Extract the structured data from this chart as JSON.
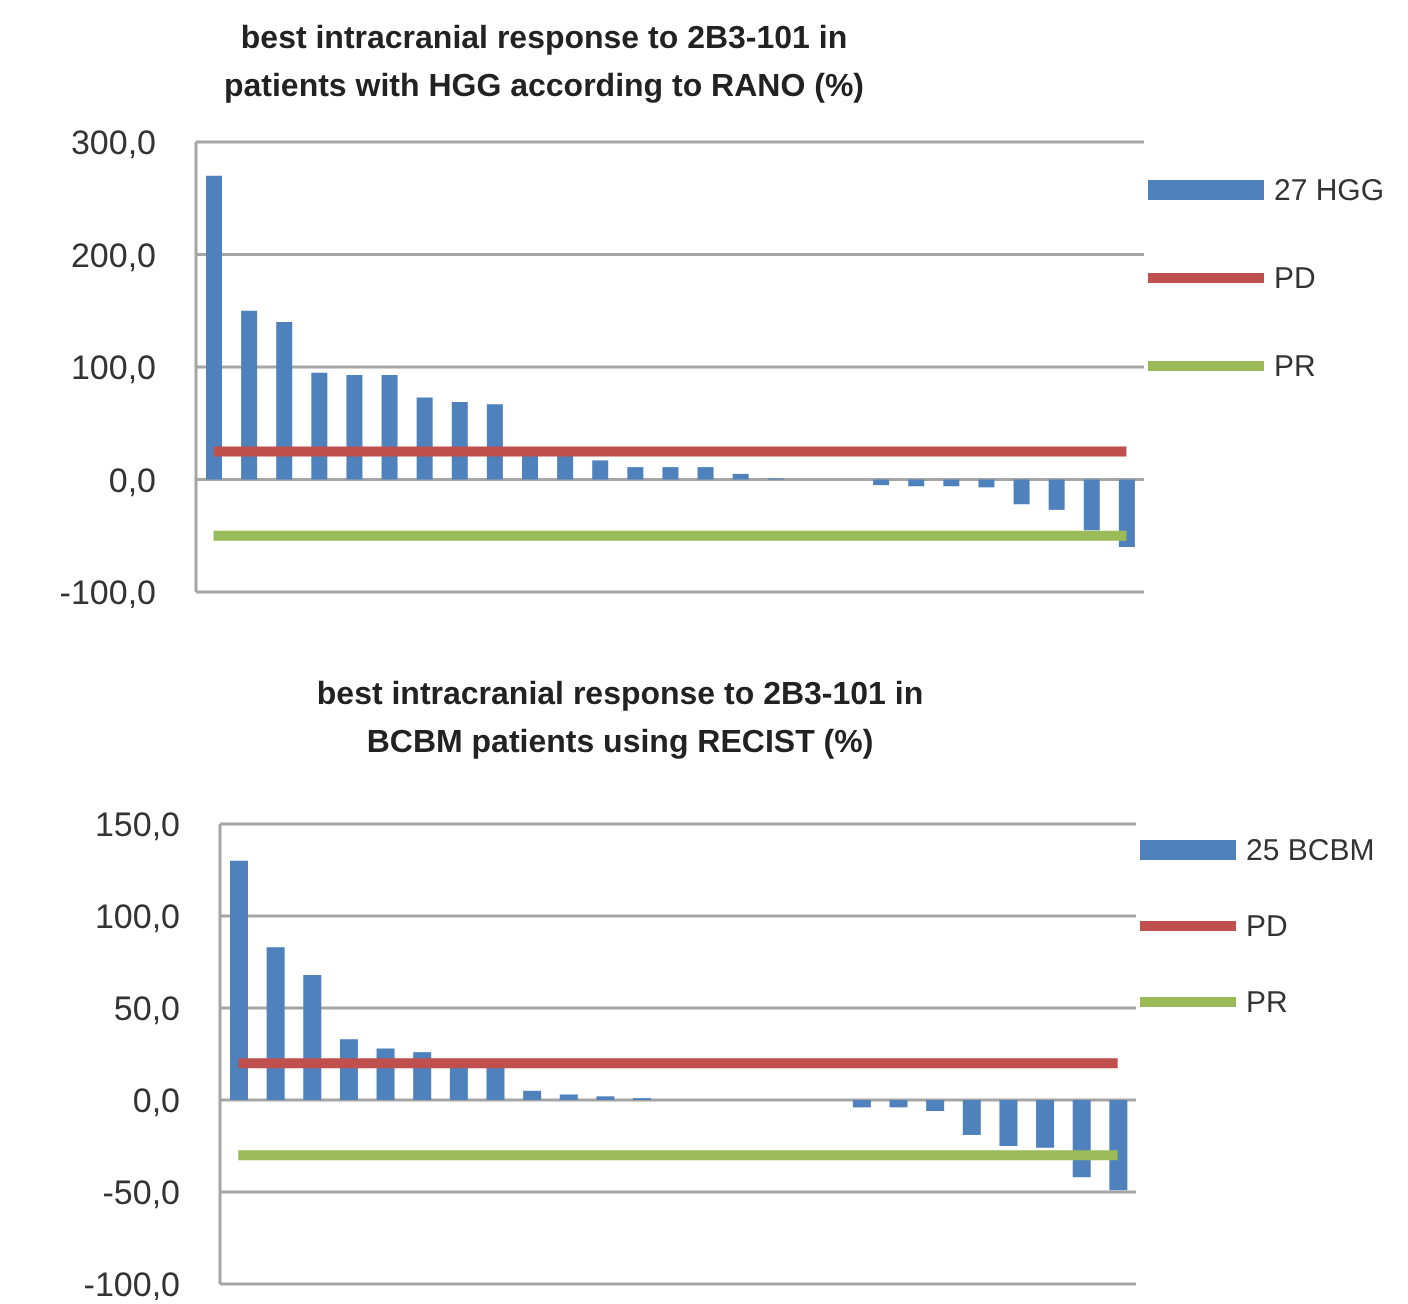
{
  "chart_data": [
    {
      "type": "bar",
      "title": "best intracranial response to 2B3-101 in\npatients with HGG according to RANO (%)",
      "categories": [
        null,
        null,
        null,
        null,
        null,
        null,
        null,
        null,
        null,
        null,
        null,
        null,
        null,
        null,
        null,
        null,
        null,
        null,
        null,
        null,
        null,
        null,
        null,
        null,
        null,
        null,
        null
      ],
      "series": [
        {
          "name": "27 HGG",
          "color": "#4f81bd",
          "values": [
            270,
            150,
            140,
            95,
            93,
            93,
            73,
            69,
            67,
            26,
            26,
            17,
            11,
            11,
            11,
            5,
            1,
            0,
            0,
            -5,
            -6,
            -6,
            -7,
            -22,
            -27,
            -45,
            -60
          ]
        },
        {
          "name": "PD",
          "type": "line",
          "color": "#c0504d",
          "values": [
            25,
            25,
            25,
            25,
            25,
            25,
            25,
            25,
            25,
            25,
            25,
            25,
            25,
            25,
            25,
            25,
            25,
            25,
            25,
            25,
            25,
            25,
            25,
            25,
            25,
            25,
            25
          ]
        },
        {
          "name": "PR",
          "type": "line",
          "color": "#9bbb59",
          "values": [
            -50,
            -50,
            -50,
            -50,
            -50,
            -50,
            -50,
            -50,
            -50,
            -50,
            -50,
            -50,
            -50,
            -50,
            -50,
            -50,
            -50,
            -50,
            -50,
            -50,
            -50,
            -50,
            -50,
            -50,
            -50,
            -50,
            -50
          ]
        }
      ],
      "ylim": [
        -100,
        300
      ],
      "yticks": [
        {
          "value": -100,
          "label": "-100,0"
        },
        {
          "value": 0,
          "label": "0,0"
        },
        {
          "value": 100,
          "label": "100,0"
        },
        {
          "value": 200,
          "label": "200,0"
        },
        {
          "value": 300,
          "label": "300,0"
        }
      ],
      "grid": "y",
      "legend": "right",
      "marker": "none"
    },
    {
      "type": "bar",
      "title": "best intracranial response to 2B3-101 in\nBCBM patients using RECIST (%)",
      "categories": [
        null,
        null,
        null,
        null,
        null,
        null,
        null,
        null,
        null,
        null,
        null,
        null,
        null,
        null,
        null,
        null,
        null,
        null,
        null,
        null,
        null,
        null,
        null,
        null,
        null
      ],
      "series": [
        {
          "name": "25 BCBM",
          "color": "#4f81bd",
          "values": [
            130,
            83,
            68,
            33,
            28,
            26,
            20,
            19,
            5,
            3,
            2,
            1,
            0,
            0,
            0,
            0,
            0,
            -4,
            -4,
            -6,
            -19,
            -25,
            -26,
            -42,
            -49
          ]
        },
        {
          "name": "PD",
          "type": "line",
          "color": "#c0504d",
          "values": [
            20,
            20,
            20,
            20,
            20,
            20,
            20,
            20,
            20,
            20,
            20,
            20,
            20,
            20,
            20,
            20,
            20,
            20,
            20,
            20,
            20,
            20,
            20,
            20,
            20
          ]
        },
        {
          "name": "PR",
          "type": "line",
          "color": "#9bbb59",
          "values": [
            -30,
            -30,
            -30,
            -30,
            -30,
            -30,
            -30,
            -30,
            -30,
            -30,
            -30,
            -30,
            -30,
            -30,
            -30,
            -30,
            -30,
            -30,
            -30,
            -30,
            -30,
            -30,
            -30,
            -30,
            -30
          ]
        }
      ],
      "ylim": [
        -100,
        150
      ],
      "yticks": [
        {
          "value": -100,
          "label": "-100,0"
        },
        {
          "value": -50,
          "label": "-50,0"
        },
        {
          "value": 0,
          "label": "0,0"
        },
        {
          "value": 50,
          "label": "50,0"
        },
        {
          "value": 100,
          "label": "100,0"
        },
        {
          "value": 150,
          "label": "150,0"
        }
      ],
      "grid": "y",
      "legend": "right",
      "marker": "none"
    }
  ]
}
